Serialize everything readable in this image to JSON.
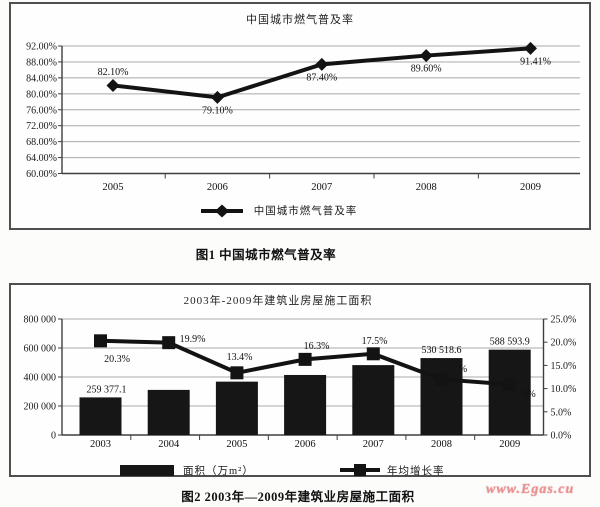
{
  "page": {
    "figure1_caption": "图1  中国城市燃气普及率",
    "figure2_caption": "图2  2003年—2009年建筑业房屋施工面积",
    "watermark": "www.Egas.cu",
    "watermark_color": "#ea9292",
    "ink_color": "#161616"
  },
  "chart_data": [
    {
      "type": "line",
      "title": "中国城市燃气普及率",
      "categories": [
        "2005",
        "2006",
        "2007",
        "2008",
        "2009"
      ],
      "series": [
        {
          "name": "中国城市燃气普及率",
          "values": [
            82.1,
            79.1,
            87.4,
            89.6,
            91.41
          ]
        }
      ],
      "point_labels": [
        "82.10%",
        "79.10%",
        "87.40%",
        "89.60%",
        "91.41%"
      ],
      "ylim": [
        60,
        92
      ],
      "ytick_labels": [
        "60.00%",
        "64.00%",
        "68.00%",
        "72.00%",
        "76.00%",
        "80.00%",
        "84.00%",
        "88.00%",
        "92.00%"
      ],
      "grid": true,
      "legend_position": "bottom",
      "marker": "diamond",
      "line_color": "#131313"
    },
    {
      "type": "bar+line",
      "title": "2003年-2009年建筑业房屋施工面积",
      "categories": [
        "2003",
        "2004",
        "2005",
        "2006",
        "2007",
        "2008",
        "2009"
      ],
      "series": [
        {
          "name": "面积（万m²）",
          "chart": "bar",
          "axis": "left",
          "values": [
            259377.1,
            311000,
            368000,
            414000,
            482000,
            530518.6,
            588593.9
          ],
          "visible_value_labels": [
            "259 377.1",
            "",
            "",
            "",
            "",
            "530 518.6",
            "588 593.9"
          ],
          "color": "#161616"
        },
        {
          "name": "年均增长率",
          "chart": "line",
          "axis": "right",
          "values": [
            20.3,
            19.9,
            13.4,
            16.3,
            17.5,
            12.0,
            10.9
          ],
          "visible_value_labels": [
            "20.3%",
            "19.9%",
            "13.4%",
            "16.3%",
            "17.5%",
            "%",
            "9%"
          ],
          "marker": "square",
          "color": "#131313"
        }
      ],
      "left_axis": {
        "ylim": [
          0,
          800000
        ],
        "tick_labels": [
          "0",
          "200 000",
          "400 000",
          "600 000",
          "800 000"
        ]
      },
      "right_axis": {
        "ylim": [
          0,
          25
        ],
        "tick_labels": [
          "0.0%",
          "5.0%",
          "10.0%",
          "15.0%",
          "20.0%",
          "25.0%"
        ]
      },
      "grid": true,
      "legend_position": "bottom",
      "notes": "2004-2007 bar values and 2008 line value estimated from gridlines; 2008 and 2009 growth-rate labels are partially hidden behind bars (only '%' and '9%' visible)"
    }
  ]
}
